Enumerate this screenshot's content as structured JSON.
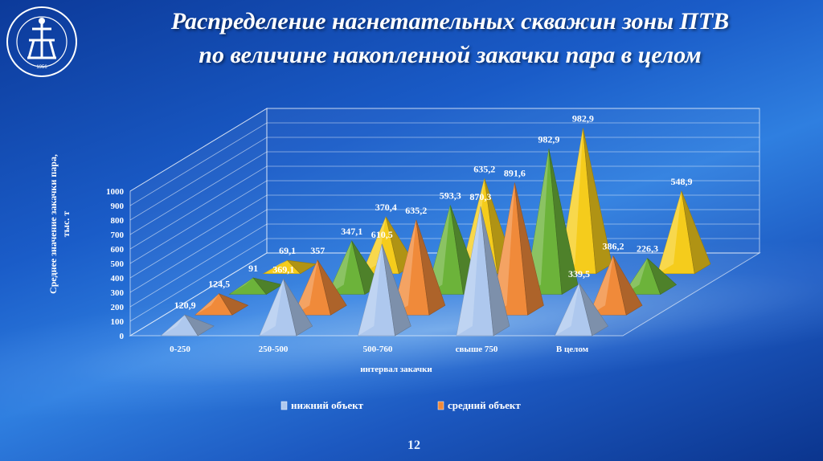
{
  "slide": {
    "title_line1": "Распределение нагнетательных скважин зоны ПТВ",
    "title_line2": "по величине накопленной закачки пара в целом",
    "page_number": "12"
  },
  "logo": {
    "ring_text": "ТЮМЕНСКИЙ ГОСУДАРСТВЕННЫЙ ТЕХНИЧЕСКИЙ УНИВЕРСИТЕТ",
    "year": "1956"
  },
  "chart_data": {
    "type": "bar",
    "subtype": "3d-pyramid",
    "categories": [
      "0-250",
      "250-500",
      "500-760",
      "свыше 750",
      "В целом"
    ],
    "xlabel": "интервал закачки",
    "ylabel": "Среднее значение закачки пара, тыс. т",
    "ylim": [
      0,
      1000
    ],
    "yticks": [
      "0",
      "100",
      "200",
      "300",
      "400",
      "500",
      "600",
      "700",
      "800",
      "900",
      "1000"
    ],
    "series": [
      {
        "name": "нижний объект",
        "color": "#aec8ee",
        "values": [
          120.9,
          369.1,
          610.5,
          870.3,
          339.5
        ],
        "labels": [
          "120,9",
          "369,1",
          "610,5",
          "870,3",
          "339,5"
        ]
      },
      {
        "name": "средний объект",
        "color": "#f08a3a",
        "values": [
          124.5,
          357,
          635.2,
          891.6,
          386.2
        ],
        "labels": [
          "124,5",
          "357",
          "635,2",
          "891,6",
          "386,2"
        ]
      },
      {
        "color": "#6cb33a",
        "values": [
          91,
          347.1,
          593.3,
          982.9,
          226.3
        ],
        "labels": [
          "91",
          "347,1",
          "593,3",
          "982,9",
          "226,3"
        ]
      },
      {
        "color": "#f5cc1c",
        "values": [
          69.1,
          370.4,
          635.2,
          982.9,
          548.9
        ],
        "labels": [
          "69,1",
          "370,4",
          "635,2",
          "982,9",
          "548,9"
        ]
      }
    ],
    "legend_position": "bottom",
    "grid": true
  }
}
